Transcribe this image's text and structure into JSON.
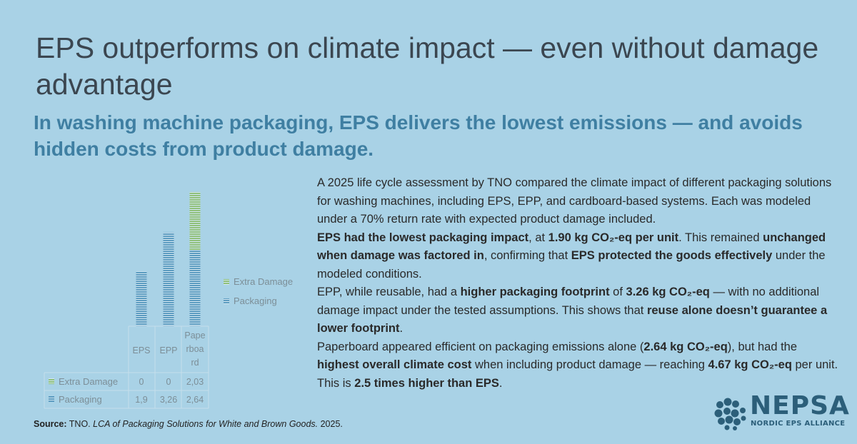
{
  "title": "EPS outperforms on climate impact — even without damage advantage",
  "subtitle": "In washing machine packaging, EPS delivers the lowest emissions — and avoids hidden costs from product damage.",
  "body": {
    "p1": "A 2025 life cycle assessment by TNO compared the climate impact of different packaging solutions for washing machines, including EPS, EPP, and cardboard-based systems. Each was modeled under a 70% return rate with expected product damage included.",
    "p2_a": "EPS had the lowest packaging impact",
    "p2_b": ", at ",
    "p2_c": "1.90 kg CO₂-eq per unit",
    "p2_d": ". This remained ",
    "p2_e": "unchanged when damage was factored in",
    "p2_f": ", confirming that ",
    "p2_g": "EPS protected the goods effectively",
    "p2_h": " under the modeled conditions.",
    "p3_a": "EPP, while reusable, had a ",
    "p3_b": "higher packaging footprint",
    "p3_c": " of ",
    "p3_d": "3.26 kg CO₂-eq",
    "p3_e": " — with no additional damage impact under the tested assumptions. This shows that ",
    "p3_f": "reuse alone doesn’t guarantee a lower footprint",
    "p3_g": ".",
    "p4_a": "Paperboard appeared efficient on packaging emissions alone (",
    "p4_b": "2.64 kg CO₂-eq",
    "p4_c": "), but had the ",
    "p4_d": "highest overall climate cost",
    "p4_e": " when including product damage — reaching ",
    "p4_f": "4.67 kg CO₂-eq",
    "p4_g": " per unit. This is ",
    "p4_h": "2.5 times higher than EPS",
    "p4_i": "."
  },
  "source": {
    "label": "Source:",
    "org": " TNO. ",
    "work": "LCA of Packaging Solutions for White and Brown Goods.",
    "year": " 2025."
  },
  "logo": {
    "word": "NEPSA",
    "sub": "NORDIC EPS ALLIANCE"
  },
  "colors": {
    "background": "#a9d2e6",
    "packaging": "#5b9bc0",
    "extra_damage": "#8fc07a",
    "title": "#3b4650",
    "subtitle": "#3f7fa2",
    "logo": "#2c5f7a"
  },
  "chart_data": {
    "type": "bar",
    "stacked": true,
    "categories": [
      "EPS",
      "EPP",
      "Paperboard"
    ],
    "category_labels": [
      "EPS",
      "EPP",
      "Pape|rboa|rd"
    ],
    "series": [
      {
        "name": "Extra Damage",
        "values": [
          0,
          0,
          2.03
        ],
        "labels": [
          "0",
          "0",
          "2,03"
        ],
        "color": "#8fc07a"
      },
      {
        "name": "Packaging",
        "values": [
          1.9,
          3.26,
          2.64
        ],
        "labels": [
          "1,9",
          "3,26",
          "2,64"
        ],
        "color": "#5b9bc0"
      }
    ],
    "ylim": [
      0,
      4.67
    ],
    "legend": "right",
    "data_table": true,
    "grid": false
  }
}
